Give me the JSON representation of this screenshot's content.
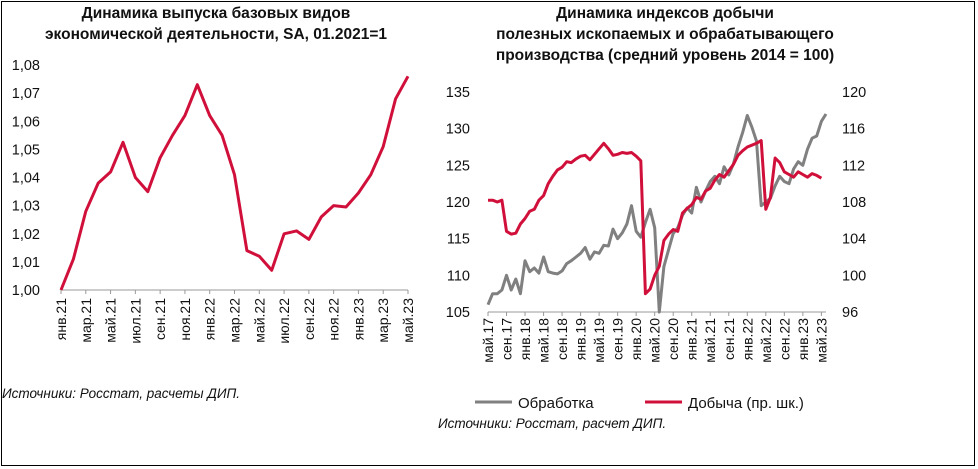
{
  "chart_data": [
    {
      "type": "line",
      "title": "Динамика выпуска базовых видов экономической деятельности, SA, 01.2021=1",
      "title_lines": [
        "Динамика выпуска базовых видов",
        "экономической деятельности, SA, 01.2021=1"
      ],
      "yticks": [
        "1,08",
        "1,07",
        "1,06",
        "1,05",
        "1,04",
        "1,03",
        "1,02",
        "1,01",
        "1,00"
      ],
      "ylim": [
        1.0,
        1.08
      ],
      "xticks": [
        "янв.21",
        "мар.21",
        "май.21",
        "июл.21",
        "сен.21",
        "ноя.21",
        "янв.22",
        "мар.22",
        "май.22",
        "июл.22",
        "сен.22",
        "ноя.22",
        "янв.23",
        "мар.23",
        "май.23"
      ],
      "series": [
        {
          "color": "#d0103a",
          "values": [
            1.0,
            1.011,
            1.028,
            1.038,
            1.042,
            1.0525,
            1.04,
            1.035,
            1.047,
            1.055,
            1.062,
            1.073,
            1.062,
            1.055,
            1.041,
            1.014,
            1.012,
            1.007,
            1.02,
            1.021,
            1.018,
            1.026,
            1.03,
            1.0295,
            1.0345,
            1.041,
            1.051,
            1.068,
            1.076
          ]
        }
      ],
      "source": "Источники: Росстат, расчеты ДИП."
    },
    {
      "type": "line",
      "title": "Динамика индексов добычи полезных ископаемых и обрабатывающего производства (средний уровень 2014 = 100)",
      "title_lines": [
        "Динамика индексов добычи",
        "полезных ископаемых и обрабатывающего",
        "производства (средний уровень 2014 = 100)"
      ],
      "yticks_left": [
        "135",
        "130",
        "125",
        "120",
        "115",
        "110",
        "105"
      ],
      "ylim_left": [
        105,
        135
      ],
      "yticks_right": [
        "120",
        "116",
        "112",
        "108",
        "104",
        "100",
        "96"
      ],
      "ylim_right": [
        96,
        120
      ],
      "xticks": [
        "май.17",
        "сен.17",
        "янв.18",
        "май.18",
        "сен.18",
        "янв.19",
        "май.19",
        "сен.19",
        "янв.20",
        "май.20",
        "сен.20",
        "янв.21",
        "май.21",
        "сен.21",
        "янв.22",
        "май.22",
        "сен.22",
        "янв.23",
        "май.23"
      ],
      "x_start": "май.17",
      "x_end": "июн.23",
      "series": [
        {
          "name": "Обработка",
          "axis": "left",
          "color": "#808080",
          "values": [
            106,
            107.5,
            107.5,
            108,
            110,
            108,
            109.5,
            107.5,
            112,
            110.5,
            111,
            110.3,
            112.5,
            110.5,
            110.3,
            110.2,
            110.6,
            111.6,
            112,
            112.5,
            113,
            113.8,
            112.2,
            113.2,
            113,
            114.1,
            114,
            116.3,
            115,
            115.8,
            117,
            119.5,
            116,
            115.2,
            117.2,
            119,
            116.5,
            105,
            111.2,
            113.5,
            115.7,
            116.5,
            118.2,
            119.2,
            118.5,
            122,
            120,
            121.5,
            122.8,
            123.5,
            122.5,
            124.8,
            123.7,
            125.2,
            127.5,
            129.5,
            131.8,
            130.2,
            128.3,
            119.5,
            120,
            120.5,
            122.2,
            123.5,
            122.8,
            122.5,
            124.5,
            125.5,
            125,
            127.2,
            128.7,
            129,
            131,
            132
          ]
        },
        {
          "name": "Добыча (пр. шк.)",
          "axis": "right",
          "color": "#d0103a",
          "values": [
            108.2,
            108.2,
            108,
            108.2,
            104.8,
            104.5,
            104.6,
            105.6,
            106.2,
            107,
            107.2,
            108.2,
            108.7,
            110,
            110.8,
            111.5,
            111.8,
            112.4,
            112.3,
            112.7,
            113,
            113.1,
            112.6,
            113.2,
            113.8,
            114.4,
            113.8,
            113.1,
            113.2,
            113.4,
            113.3,
            113.4,
            113,
            112.5,
            98,
            98.5,
            100,
            101,
            103.8,
            104.5,
            105,
            104.8,
            106.8,
            107.3,
            107.7,
            108.5,
            108.3,
            109.2,
            109.5,
            110.4,
            111,
            110.7,
            111.4,
            112.1,
            113.1,
            113.6,
            114,
            114.2,
            114.4,
            114.7,
            107.2,
            108.5,
            112.8,
            112.3,
            111.3,
            111,
            110.7,
            111.3,
            111,
            110.7,
            111.1,
            110.9,
            110.6
          ]
        }
      ],
      "source": "Источники: Росстат, расчет ДИП."
    }
  ]
}
